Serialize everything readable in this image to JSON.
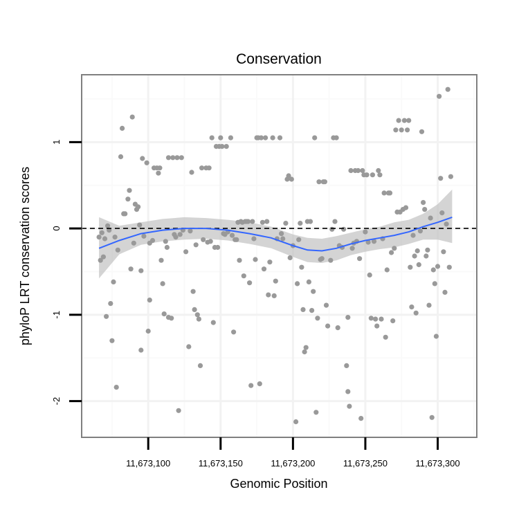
{
  "chart_data": {
    "type": "scatter",
    "title": "Conservation",
    "xlabel": "Genomic Position",
    "ylabel": "phyloP LRT conservation scores",
    "xlim": [
      11673054,
      11673327
    ],
    "ylim": [
      -2.42,
      1.78
    ],
    "grid": true,
    "x_ticks": [
      11673100,
      11673150,
      11673200,
      11673250,
      11673300
    ],
    "x_tick_labels": [
      "11,673,100",
      "11,673,150",
      "11,673,200",
      "11,673,250",
      "11,673,300"
    ],
    "y_ticks": [
      -2,
      -1,
      0,
      1
    ],
    "y_tick_labels": [
      "-2",
      "-1",
      "0",
      "1"
    ],
    "reference_line": {
      "y": 0,
      "style": "dashed",
      "color": "#000000"
    },
    "point_color": "#999999",
    "smooth_color": "#3366ff",
    "ribbon_color": "#bdbdbd",
    "points": [
      [
        11673066,
        -0.1
      ],
      [
        11673067,
        -0.37
      ],
      [
        11673068,
        -0.05
      ],
      [
        11673069,
        -0.33
      ],
      [
        11673070,
        -0.12
      ],
      [
        11673071,
        -1.02
      ],
      [
        11673072,
        0.03
      ],
      [
        11673073,
        -0.02
      ],
      [
        11673074,
        -0.87
      ],
      [
        11673075,
        -1.3
      ],
      [
        11673076,
        -0.62
      ],
      [
        11673077,
        -0.1
      ],
      [
        11673078,
        -1.84
      ],
      [
        11673079,
        -0.25
      ],
      [
        11673081,
        0.83
      ],
      [
        11673082,
        1.16
      ],
      [
        11673083,
        0.17
      ],
      [
        11673084,
        0.17
      ],
      [
        11673086,
        0.34
      ],
      [
        11673087,
        0.44
      ],
      [
        11673088,
        -0.47
      ],
      [
        11673089,
        1.29
      ],
      [
        11673090,
        -0.17
      ],
      [
        11673091,
        0.28
      ],
      [
        11673092,
        0.22
      ],
      [
        11673093,
        0.25
      ],
      [
        11673094,
        0.04
      ],
      [
        11673095,
        -0.49
      ],
      [
        11673095,
        -1.41
      ],
      [
        11673096,
        0.81
      ],
      [
        11673097,
        -0.09
      ],
      [
        11673099,
        0.76
      ],
      [
        11673100,
        -1.19
      ],
      [
        11673101,
        -0.83
      ],
      [
        11673101,
        -0.17
      ],
      [
        11673103,
        -0.14
      ],
      [
        11673104,
        0.7
      ],
      [
        11673106,
        0.7
      ],
      [
        11673107,
        0.64
      ],
      [
        11673108,
        0.7
      ],
      [
        11673109,
        -0.37
      ],
      [
        11673110,
        -0.64
      ],
      [
        11673111,
        -0.99
      ],
      [
        11673112,
        -0.15
      ],
      [
        11673113,
        -0.22
      ],
      [
        11673114,
        -1.03
      ],
      [
        11673114,
        0.82
      ],
      [
        11673116,
        -1.04
      ],
      [
        11673117,
        0.82
      ],
      [
        11673118,
        -0.07
      ],
      [
        11673119,
        -0.1
      ],
      [
        11673120,
        0.82
      ],
      [
        11673121,
        -2.11
      ],
      [
        11673122,
        -0.07
      ],
      [
        11673123,
        0.82
      ],
      [
        11673124,
        -0.02
      ],
      [
        11673126,
        -0.27
      ],
      [
        11673128,
        -1.37
      ],
      [
        11673129,
        -0.03
      ],
      [
        11673130,
        0.65
      ],
      [
        11673131,
        -0.73
      ],
      [
        11673132,
        -0.94
      ],
      [
        11673133,
        -0.19
      ],
      [
        11673134,
        -1.0
      ],
      [
        11673135,
        -1.05
      ],
      [
        11673136,
        -1.59
      ],
      [
        11673137,
        0.7
      ],
      [
        11673138,
        -0.13
      ],
      [
        11673140,
        0.7
      ],
      [
        11673141,
        -0.16
      ],
      [
        11673142,
        0.7
      ],
      [
        11673143,
        -0.15
      ],
      [
        11673144,
        1.05
      ],
      [
        11673145,
        -1.09
      ],
      [
        11673146,
        -0.22
      ],
      [
        11673147,
        0.95
      ],
      [
        11673148,
        -0.22
      ],
      [
        11673149,
        0.95
      ],
      [
        11673150,
        1.05
      ],
      [
        11673151,
        0.95
      ],
      [
        11673152,
        -0.06
      ],
      [
        11673153,
        -0.07
      ],
      [
        11673154,
        0.95
      ],
      [
        11673155,
        -0.04
      ],
      [
        11673157,
        1.05
      ],
      [
        11673158,
        -0.08
      ],
      [
        11673159,
        -1.2
      ],
      [
        11673160,
        -0.13
      ],
      [
        11673161,
        -0.13
      ],
      [
        11673162,
        0.07
      ],
      [
        11673163,
        -0.37
      ],
      [
        11673164,
        0.08
      ],
      [
        11673165,
        0.07
      ],
      [
        11673166,
        -0.55
      ],
      [
        11673167,
        0.08
      ],
      [
        11673168,
        0.08
      ],
      [
        11673169,
        0.08
      ],
      [
        11673170,
        -0.63
      ],
      [
        11673171,
        -1.82
      ],
      [
        11673172,
        0.08
      ],
      [
        11673173,
        -0.12
      ],
      [
        11673174,
        -0.36
      ],
      [
        11673175,
        1.05
      ],
      [
        11673176,
        1.05
      ],
      [
        11673177,
        -1.8
      ],
      [
        11673178,
        1.05
      ],
      [
        11673179,
        0.07
      ],
      [
        11673180,
        -0.47
      ],
      [
        11673181,
        1.05
      ],
      [
        11673182,
        0.08
      ],
      [
        11673183,
        -0.77
      ],
      [
        11673184,
        -0.39
      ],
      [
        11673186,
        1.05
      ],
      [
        11673187,
        -0.78
      ],
      [
        11673188,
        -0.61
      ],
      [
        11673189,
        -0.12
      ],
      [
        11673191,
        1.05
      ],
      [
        11673192,
        -0.06
      ],
      [
        11673193,
        -0.12
      ],
      [
        11673195,
        0.06
      ],
      [
        11673196,
        0.57
      ],
      [
        11673197,
        0.61
      ],
      [
        11673198,
        -0.34
      ],
      [
        11673199,
        0.57
      ],
      [
        11673200,
        -0.2
      ],
      [
        11673202,
        -2.24
      ],
      [
        11673203,
        -0.64
      ],
      [
        11673204,
        -0.13
      ],
      [
        11673205,
        0.06
      ],
      [
        11673206,
        -0.45
      ],
      [
        11673207,
        -0.94
      ],
      [
        11673208,
        -1.43
      ],
      [
        11673209,
        -1.38
      ],
      [
        11673210,
        0.08
      ],
      [
        11673211,
        -0.62
      ],
      [
        11673212,
        0.08
      ],
      [
        11673213,
        -0.95
      ],
      [
        11673214,
        -0.73
      ],
      [
        11673215,
        1.05
      ],
      [
        11673216,
        -2.13
      ],
      [
        11673217,
        -1.04
      ],
      [
        11673218,
        0.54
      ],
      [
        11673219,
        -0.36
      ],
      [
        11673220,
        -0.35
      ],
      [
        11673221,
        0.54
      ],
      [
        11673222,
        0.54
      ],
      [
        11673223,
        -0.89
      ],
      [
        11673224,
        -1.13
      ],
      [
        11673226,
        -0.37
      ],
      [
        11673227,
        -0.01
      ],
      [
        11673228,
        1.05
      ],
      [
        11673229,
        0.08
      ],
      [
        11673230,
        1.05
      ],
      [
        11673231,
        -1.15
      ],
      [
        11673232,
        -0.2
      ],
      [
        11673234,
        -0.22
      ],
      [
        11673235,
        -0.01
      ],
      [
        11673237,
        -1.59
      ],
      [
        11673238,
        -1.03
      ],
      [
        11673238,
        -1.89
      ],
      [
        11673239,
        -2.06
      ],
      [
        11673240,
        0.67
      ],
      [
        11673241,
        -0.23
      ],
      [
        11673242,
        -0.17
      ],
      [
        11673243,
        0.67
      ],
      [
        11673244,
        -0.15
      ],
      [
        11673245,
        0.67
      ],
      [
        11673246,
        -0.35
      ],
      [
        11673247,
        -2.2
      ],
      [
        11673248,
        0.67
      ],
      [
        11673249,
        0.62
      ],
      [
        11673250,
        -0.04
      ],
      [
        11673251,
        0.62
      ],
      [
        11673252,
        -0.16
      ],
      [
        11673253,
        -0.54
      ],
      [
        11673254,
        -1.04
      ],
      [
        11673255,
        0.62
      ],
      [
        11673256,
        -0.15
      ],
      [
        11673257,
        -1.05
      ],
      [
        11673258,
        -1.13
      ],
      [
        11673259,
        0.67
      ],
      [
        11673260,
        0.62
      ],
      [
        11673261,
        -1.05
      ],
      [
        11673262,
        -0.12
      ],
      [
        11673263,
        0.41
      ],
      [
        11673264,
        -1.26
      ],
      [
        11673265,
        -0.48
      ],
      [
        11673266,
        0.41
      ],
      [
        11673267,
        0.41
      ],
      [
        11673268,
        -0.28
      ],
      [
        11673269,
        -1.07
      ],
      [
        11673270,
        -0.23
      ],
      [
        11673271,
        1.14
      ],
      [
        11673272,
        0.19
      ],
      [
        11673273,
        1.25
      ],
      [
        11673274,
        0.19
      ],
      [
        11673275,
        1.14
      ],
      [
        11673276,
        0.22
      ],
      [
        11673277,
        1.25
      ],
      [
        11673278,
        0.24
      ],
      [
        11673279,
        1.14
      ],
      [
        11673280,
        1.25
      ],
      [
        11673281,
        -0.45
      ],
      [
        11673282,
        -0.91
      ],
      [
        11673283,
        -0.08
      ],
      [
        11673284,
        -0.32
      ],
      [
        11673285,
        -0.98
      ],
      [
        11673286,
        -0.26
      ],
      [
        11673287,
        -0.42
      ],
      [
        11673288,
        -0.03
      ],
      [
        11673289,
        1.12
      ],
      [
        11673290,
        0.3
      ],
      [
        11673291,
        0.22
      ],
      [
        11673292,
        -0.32
      ],
      [
        11673293,
        -0.25
      ],
      [
        11673294,
        -0.89
      ],
      [
        11673295,
        0.12
      ],
      [
        11673296,
        -2.19
      ],
      [
        11673297,
        -0.48
      ],
      [
        11673298,
        -0.64
      ],
      [
        11673299,
        -1.25
      ],
      [
        11673300,
        -0.44
      ],
      [
        11673301,
        1.53
      ],
      [
        11673302,
        0.58
      ],
      [
        11673303,
        0.18
      ],
      [
        11673304,
        -0.27
      ],
      [
        11673305,
        -0.74
      ],
      [
        11673306,
        0.05
      ],
      [
        11673307,
        1.61
      ],
      [
        11673308,
        -0.45
      ],
      [
        11673309,
        0.6
      ]
    ],
    "smooth": {
      "x": [
        11673066,
        11673080,
        11673095,
        11673110,
        11673125,
        11673140,
        11673155,
        11673170,
        11673185,
        11673200,
        11673210,
        11673220,
        11673230,
        11673240,
        11673250,
        11673260,
        11673270,
        11673280,
        11673290,
        11673300,
        11673310
      ],
      "y": [
        -0.23,
        -0.14,
        -0.06,
        -0.02,
        0.0,
        0.0,
        -0.02,
        -0.06,
        -0.11,
        -0.2,
        -0.25,
        -0.26,
        -0.23,
        -0.18,
        -0.14,
        -0.11,
        -0.08,
        -0.04,
        0.02,
        0.07,
        0.13
      ],
      "lower": [
        -0.58,
        -0.3,
        -0.19,
        -0.15,
        -0.13,
        -0.12,
        -0.14,
        -0.18,
        -0.23,
        -0.33,
        -0.39,
        -0.4,
        -0.37,
        -0.31,
        -0.27,
        -0.24,
        -0.22,
        -0.18,
        -0.13,
        -0.13,
        -0.17
      ],
      "upper": [
        0.13,
        0.03,
        0.07,
        0.11,
        0.13,
        0.12,
        0.1,
        0.07,
        0.02,
        -0.07,
        -0.11,
        -0.12,
        -0.09,
        -0.05,
        -0.01,
        0.02,
        0.07,
        0.1,
        0.17,
        0.28,
        0.45
      ]
    }
  }
}
